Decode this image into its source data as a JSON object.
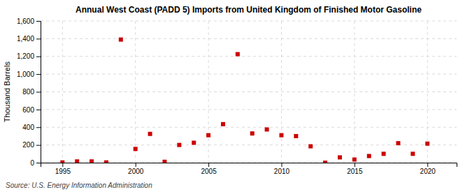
{
  "chart_data": {
    "type": "scatter",
    "title": "Annual West Coast (PADD 5) Imports from United Kingdom of Finished Motor Gasoline",
    "ylabel": "Thousand Barrels",
    "source": "Source: U.S. Energy Information Administration",
    "x": [
      1995,
      1996,
      1997,
      1998,
      1999,
      2000,
      2001,
      2002,
      2003,
      2004,
      2005,
      2006,
      2007,
      2008,
      2009,
      2010,
      2011,
      2012,
      2013,
      2014,
      2015,
      2016,
      2017,
      2018,
      2019,
      2020
    ],
    "values": [
      3,
      14,
      14,
      3,
      1390,
      155,
      325,
      10,
      200,
      225,
      310,
      435,
      1225,
      330,
      375,
      310,
      300,
      185,
      0,
      60,
      35,
      75,
      100,
      220,
      100,
      215
    ],
    "color": "#cc0000",
    "marker": "square",
    "xlim": [
      1993.5,
      2022
    ],
    "xticks": [
      1995,
      2000,
      2005,
      2010,
      2015,
      2020
    ],
    "ylim": [
      0,
      1600
    ],
    "yticks": [
      0,
      200,
      400,
      600,
      800,
      {
        "value": 1000,
        "label": "1,000"
      },
      {
        "value": 1200,
        "label": "1,200"
      },
      {
        "value": 1400,
        "label": "1,400"
      },
      {
        "value": 1600,
        "label": "1,600"
      }
    ],
    "grid": true
  }
}
